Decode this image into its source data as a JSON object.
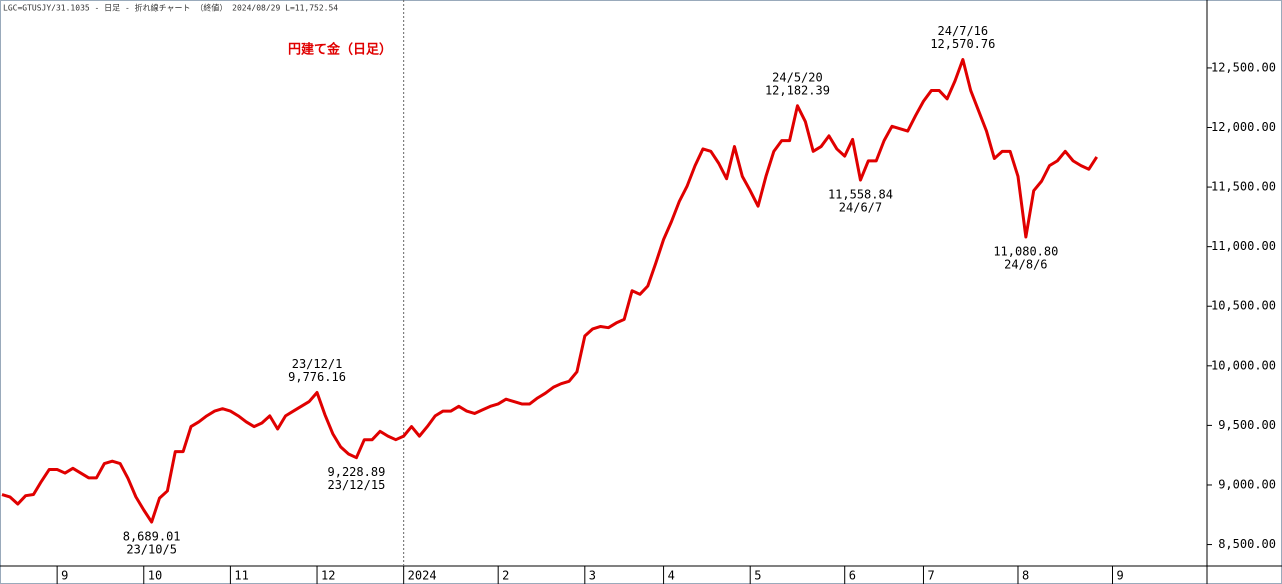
{
  "chart_data": {
    "type": "line",
    "header": "LGC=GTUSJY/31.1035 - 日足 - 折れ線チャート （終値） 2024/08/29 L=11,752.54",
    "title": "円建て金（日足）",
    "categories": [
      null,
      null,
      null,
      null,
      null,
      null,
      null,
      "9",
      null,
      null,
      null,
      null,
      null,
      null,
      null,
      null,
      null,
      null,
      "10",
      null,
      null,
      null,
      null,
      null,
      null,
      null,
      null,
      null,
      null,
      "11",
      null,
      null,
      null,
      null,
      null,
      null,
      null,
      null,
      null,
      null,
      "12",
      null,
      null,
      null,
      null,
      null,
      null,
      null,
      null,
      null,
      null,
      "2024",
      null,
      null,
      null,
      null,
      null,
      null,
      null,
      null,
      null,
      null,
      null,
      "2",
      null,
      null,
      null,
      null,
      null,
      null,
      null,
      null,
      null,
      null,
      "3",
      null,
      null,
      null,
      null,
      null,
      null,
      null,
      null,
      null,
      "4",
      null,
      null,
      null,
      null,
      null,
      null,
      null,
      null,
      null,
      null,
      "5",
      null,
      null,
      null,
      null,
      null,
      null,
      null,
      null,
      null,
      null,
      null,
      "6",
      null,
      null,
      null,
      null,
      null,
      null,
      null,
      null,
      null,
      "7",
      null,
      null,
      null,
      null,
      null,
      null,
      null,
      null,
      null,
      null,
      null,
      "8",
      null,
      null,
      null,
      null,
      null,
      null,
      null,
      null,
      null,
      null,
      null,
      "9",
      null,
      null,
      null,
      null,
      null,
      null,
      null,
      null,
      null,
      null,
      null,
      null
    ],
    "series": [
      {
        "name": "LGC=GTUSJY",
        "color": "#e00000",
        "values": [
          8920,
          8900,
          8840,
          8910,
          8920,
          9030,
          9130,
          9130,
          9100,
          9140,
          9100,
          9060,
          9060,
          9180,
          9200,
          9180,
          9055,
          8900,
          8790,
          8689.01,
          8890,
          8950,
          9280,
          9280,
          9490,
          9530,
          9580,
          9620,
          9640,
          9620,
          9580,
          9530,
          9490,
          9520,
          9580,
          9470,
          9580,
          9620,
          9660,
          9700,
          9776.16,
          9590,
          9430,
          9320,
          9260,
          9228.89,
          9380,
          9380,
          9450,
          9410,
          9380,
          9410,
          9490,
          9410,
          9490,
          9580,
          9620,
          9620,
          9660,
          9620,
          9600,
          9630,
          9660,
          9680,
          9720,
          9700,
          9680,
          9680,
          9730,
          9770,
          9820,
          9850,
          9870,
          9950,
          10250,
          10310,
          10330,
          10320,
          10360,
          10390,
          10630,
          10600,
          10670,
          10860,
          11060,
          11210,
          11380,
          11510,
          11680,
          11820,
          11800,
          11700,
          11570,
          11840,
          11590,
          11470,
          11340,
          11590,
          11800,
          11890,
          11890,
          12182.39,
          12050,
          11800,
          11840,
          11930,
          11820,
          11760,
          11900,
          11558.84,
          11720,
          11720,
          11890,
          12010,
          11990,
          11970,
          12100,
          12220,
          12310,
          12310,
          12240,
          12390,
          12570.76,
          12310,
          12140,
          11970,
          11740,
          11800,
          11800,
          11590,
          11080.8,
          11470,
          11550,
          11680,
          11720,
          11800,
          11720,
          11680,
          11650,
          11752.54,
          null,
          null,
          null,
          null,
          null,
          null,
          null,
          null,
          null,
          null,
          null,
          null,
          null,
          null
        ]
      }
    ],
    "annotations": [
      {
        "date": "23/10/5",
        "label": "8,689.01",
        "value": 8689.01
      },
      {
        "date": "23/12/1",
        "label": "9,776.16",
        "value": 9776.16
      },
      {
        "date": "23/12/15",
        "label": "9,228.89",
        "value": 9228.89
      },
      {
        "date": "24/5/20",
        "label": "12,182.39",
        "value": 12182.39
      },
      {
        "date": "24/6/7",
        "label": "11,558.84",
        "value": 11558.84
      },
      {
        "date": "24/7/16",
        "label": "12,570.76",
        "value": 12570.76
      },
      {
        "date": "24/8/6",
        "label": "11,080.80",
        "value": 11080.8
      }
    ],
    "ylim": [
      8320,
      13070
    ],
    "yticks": [
      {
        "value": 8500,
        "label": "8,500.00"
      },
      {
        "value": 9000,
        "label": "9,000.00"
      },
      {
        "value": 9500,
        "label": "9,500.00"
      },
      {
        "value": 10000,
        "label": "10,000.00"
      },
      {
        "value": 10500,
        "label": "10,500.00"
      },
      {
        "value": 11000,
        "label": "11,000.00"
      },
      {
        "value": 11500,
        "label": "11,500.00"
      },
      {
        "value": 12000,
        "label": "12,000.00"
      },
      {
        "value": 12500,
        "label": "12,500.00"
      }
    ],
    "y_axis_side": "right"
  }
}
